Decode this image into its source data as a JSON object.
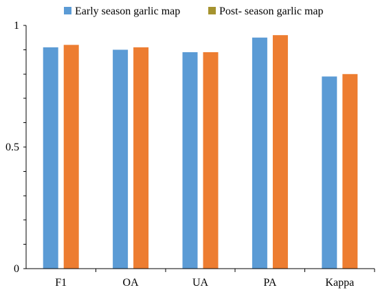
{
  "chart_data": {
    "type": "bar",
    "categories": [
      "F1",
      "OA",
      "UA",
      "PA",
      "Kappa"
    ],
    "series": [
      {
        "name": "Early season garlic map",
        "values": [
          0.91,
          0.9,
          0.89,
          0.95,
          0.79
        ],
        "legend_color": "#5b9bd5",
        "bar_color": "#5b9bd5"
      },
      {
        "name": "Post- season garlic map",
        "values": [
          0.92,
          0.91,
          0.89,
          0.96,
          0.8
        ],
        "legend_color": "#a5932f",
        "bar_color": "#ed7d31"
      }
    ],
    "y_ticks": [
      0,
      0.5,
      1
    ],
    "y_tick_labels": [
      "0",
      "0.5",
      "1"
    ],
    "ylim": [
      0,
      1
    ],
    "grid": false,
    "legend_position": "top"
  }
}
